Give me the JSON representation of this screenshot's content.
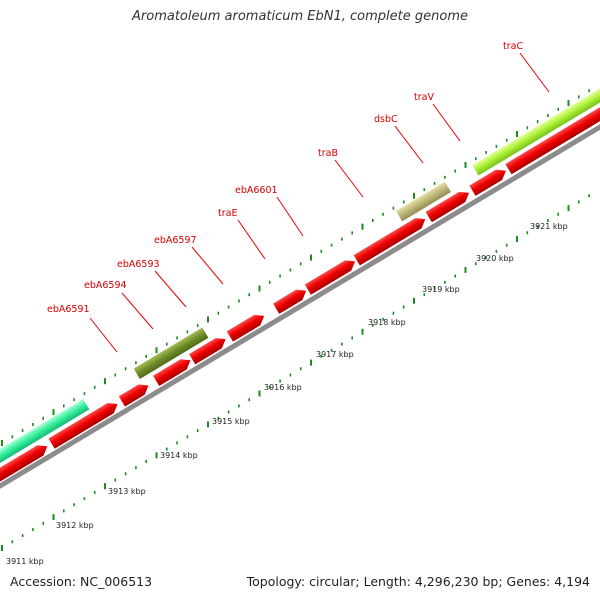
{
  "title": "Aromatoleum aromaticum EbN1, complete genome",
  "footer": {
    "accession": "Accession: NC_006513",
    "summary": "Topology: circular; Length: 4,296,230 bp; Genes: 4,194"
  },
  "colors": {
    "backbone": "#8c8c8c",
    "cds": "#ee0000",
    "label": "#d40000",
    "ticks": "#1e8a1e"
  },
  "scale_ticks": [
    {
      "label": "3911 kbp"
    },
    {
      "label": "3912 kbp"
    },
    {
      "label": "3913 kbp"
    },
    {
      "label": "3914 kbp"
    },
    {
      "label": "3915 kbp"
    },
    {
      "label": "3916 kbp"
    },
    {
      "label": "3917 kbp"
    },
    {
      "label": "3918 kbp"
    },
    {
      "label": "3919 kbp"
    },
    {
      "label": "3920 kbp"
    },
    {
      "label": "3921 kbp"
    }
  ],
  "gene_labels": [
    {
      "name": "ebA6591"
    },
    {
      "name": "ebA6594"
    },
    {
      "name": "ebA6593"
    },
    {
      "name": "ebA6597"
    },
    {
      "name": "traE"
    },
    {
      "name": "ebA6601"
    },
    {
      "name": "traB"
    },
    {
      "name": "dsbC"
    },
    {
      "name": "traV"
    },
    {
      "name": "traC"
    }
  ]
}
